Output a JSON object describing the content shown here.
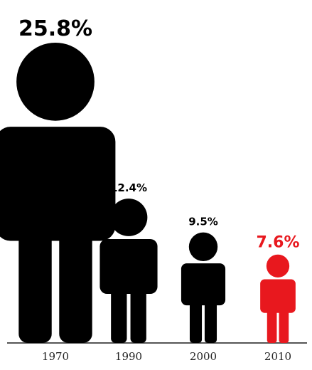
{
  "chart_data": {
    "type": "bar",
    "mark": "human-figure",
    "categories": [
      "1970",
      "1990",
      "2000",
      "2010"
    ],
    "values": [
      25.8,
      12.4,
      9.5,
      7.6
    ],
    "value_labels": [
      "25.8%",
      "12.4%",
      "9.5%",
      "7.6%"
    ],
    "unit": "%",
    "highlight_index": 3,
    "colors": {
      "default": "#000000",
      "highlight": "#e8181e",
      "baseline": "#555555"
    },
    "title": "",
    "xlabel": "",
    "ylabel": "",
    "grid": false,
    "legend": false
  }
}
